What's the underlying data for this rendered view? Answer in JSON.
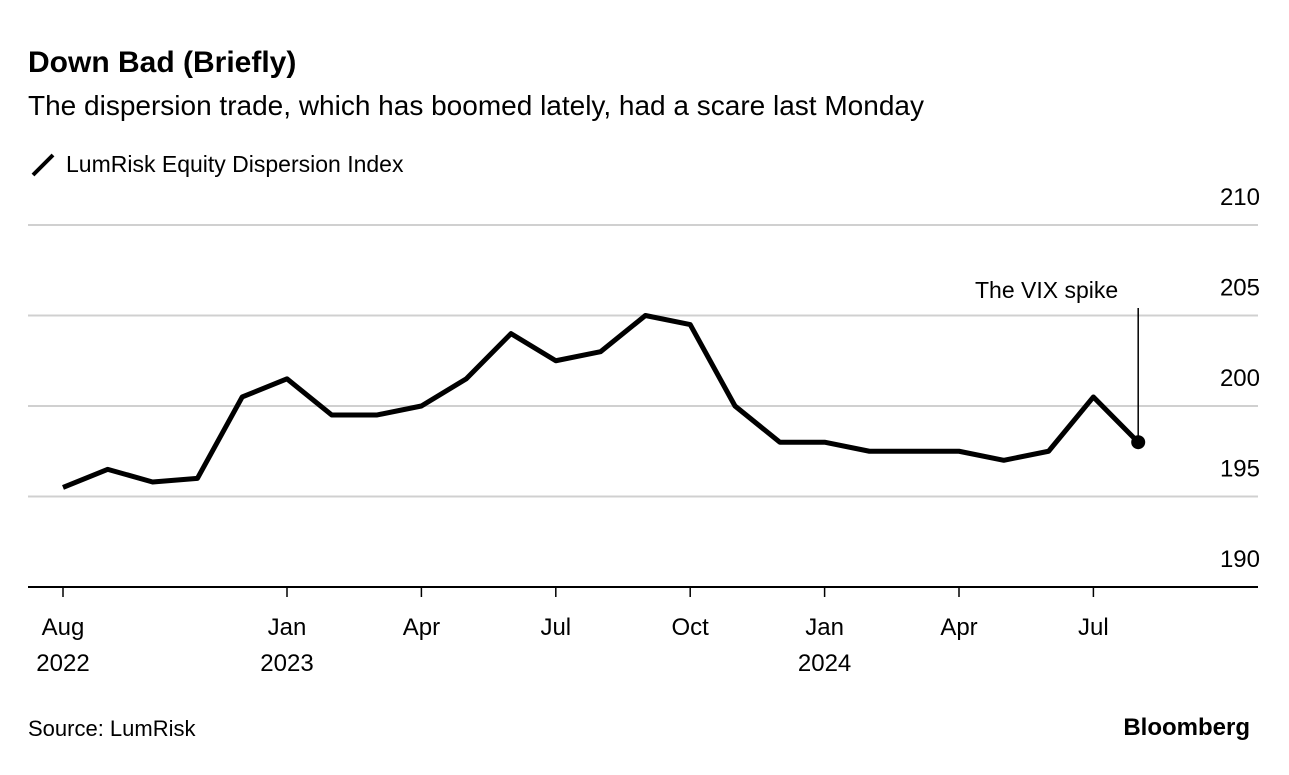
{
  "chart_data": {
    "type": "line",
    "title": "Down Bad (Briefly)",
    "subtitle": "The dispersion trade, which has boomed lately, had a scare last Monday",
    "x": [
      "2022-08",
      "2022-09",
      "2022-10",
      "2022-11",
      "2022-12",
      "2023-01",
      "2023-02",
      "2023-03",
      "2023-04",
      "2023-05",
      "2023-06",
      "2023-07",
      "2023-08",
      "2023-09",
      "2023-10",
      "2023-11",
      "2023-12",
      "2024-01",
      "2024-02",
      "2024-03",
      "2024-04",
      "2024-05",
      "2024-06",
      "2024-07",
      "2024-08"
    ],
    "series": [
      {
        "name": "LumRisk Equity Dispersion Index",
        "color": "#000000",
        "values": [
          195.5,
          196.5,
          195.8,
          196,
          200.5,
          201.5,
          199.5,
          199.5,
          200,
          201.5,
          204,
          202.5,
          203,
          205,
          204.5,
          200,
          198,
          198,
          197.5,
          197.5,
          197.5,
          197,
          197.5,
          200.5,
          198
        ]
      }
    ],
    "ylim": [
      190,
      210
    ],
    "yticks": [
      190,
      195,
      200,
      205,
      210
    ],
    "grid": true,
    "xticks": [
      {
        "value": "2022-08",
        "label": "Aug",
        "year": "2022"
      },
      {
        "value": "2023-01",
        "label": "Jan",
        "year": "2023"
      },
      {
        "value": "2023-04",
        "label": "Apr"
      },
      {
        "value": "2023-07",
        "label": "Jul"
      },
      {
        "value": "2023-10",
        "label": "Oct"
      },
      {
        "value": "2024-01",
        "label": "Jan",
        "year": "2024"
      },
      {
        "value": "2024-04",
        "label": "Apr"
      },
      {
        "value": "2024-07",
        "label": "Jul"
      }
    ],
    "annotation": {
      "text": "The VIX spike",
      "x": "2024-08"
    },
    "source": "Source: LumRisk",
    "brand": "Bloomberg"
  }
}
